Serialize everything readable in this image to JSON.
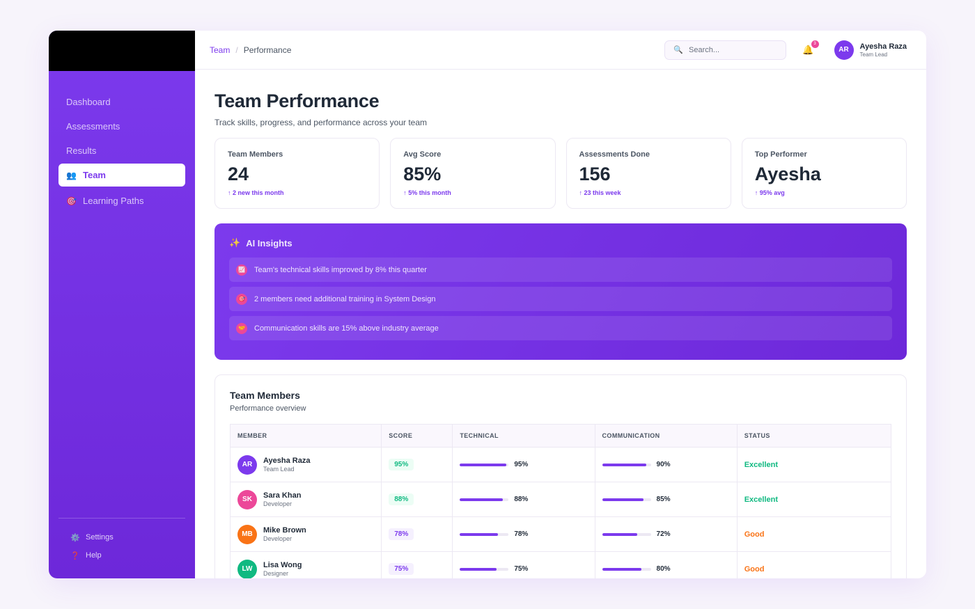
{
  "sidebar": {
    "items": [
      {
        "label": "Dashboard",
        "icon": "",
        "active": false
      },
      {
        "label": "Assessments",
        "icon": "",
        "active": false
      },
      {
        "label": "Results",
        "icon": "",
        "active": false
      },
      {
        "label": "Team",
        "icon": "👥",
        "active": true
      },
      {
        "label": "Learning Paths",
        "icon": "🎯",
        "active": false
      }
    ],
    "footer": [
      {
        "label": "Settings",
        "icon": "⚙️"
      },
      {
        "label": "Help",
        "icon": "❓"
      }
    ]
  },
  "header": {
    "breadcrumb": {
      "parent": "Team",
      "separator": "/",
      "current": "Performance"
    },
    "search": {
      "placeholder": "Search...",
      "icon": "🔍"
    },
    "notifications": {
      "icon": "🔔",
      "count": "3"
    },
    "user": {
      "initials": "AR",
      "name": "Ayesha Raza",
      "role": "Team Lead",
      "color": "#7c3aed"
    }
  },
  "page": {
    "title": "Team Performance",
    "subtitle": "Track skills, progress, and performance across your team"
  },
  "stats": [
    {
      "label": "Team Members",
      "value": "24",
      "delta": "↑ 2 new this month"
    },
    {
      "label": "Avg Score",
      "value": "85%",
      "delta": "↑ 5% this month"
    },
    {
      "label": "Assessments Done",
      "value": "156",
      "delta": "↑ 23 this week"
    },
    {
      "label": "Top Performer",
      "value": "Ayesha",
      "delta": "↑ 95% avg"
    }
  ],
  "insights": {
    "title": "AI Insights",
    "icon": "✨",
    "items": [
      {
        "icon": "📈",
        "text": "Team's technical skills improved by 8% this quarter"
      },
      {
        "icon": "🎯",
        "text": "2 members need additional training in System Design"
      },
      {
        "icon": "🤝",
        "text": "Communication skills are 15% above industry average"
      }
    ]
  },
  "members": {
    "title": "Team Members",
    "subtitle": "Performance overview",
    "columns": [
      "MEMBER",
      "SCORE",
      "TECHNICAL",
      "COMMUNICATION",
      "STATUS"
    ],
    "rows": [
      {
        "initials": "AR",
        "name": "Ayesha Raza",
        "role": "Team Lead",
        "color": "#7c3aed",
        "score": "95%",
        "score_level": "high",
        "technical": "95%",
        "technical_value": 95,
        "communication": "90%",
        "communication_value": 90,
        "status": "Excellent",
        "status_level": "excellent"
      },
      {
        "initials": "SK",
        "name": "Sara Khan",
        "role": "Developer",
        "color": "#ec4899",
        "score": "88%",
        "score_level": "high",
        "technical": "88%",
        "technical_value": 88,
        "communication": "85%",
        "communication_value": 85,
        "status": "Excellent",
        "status_level": "excellent"
      },
      {
        "initials": "MB",
        "name": "Mike Brown",
        "role": "Developer",
        "color": "#f97316",
        "score": "78%",
        "score_level": "mid",
        "technical": "78%",
        "technical_value": 78,
        "communication": "72%",
        "communication_value": 72,
        "status": "Good",
        "status_level": "good"
      },
      {
        "initials": "LW",
        "name": "Lisa Wong",
        "role": "Designer",
        "color": "#10b981",
        "score": "75%",
        "score_level": "mid",
        "technical": "75%",
        "technical_value": 75,
        "communication": "80%",
        "communication_value": 80,
        "status": "Good",
        "status_level": "good"
      }
    ]
  }
}
